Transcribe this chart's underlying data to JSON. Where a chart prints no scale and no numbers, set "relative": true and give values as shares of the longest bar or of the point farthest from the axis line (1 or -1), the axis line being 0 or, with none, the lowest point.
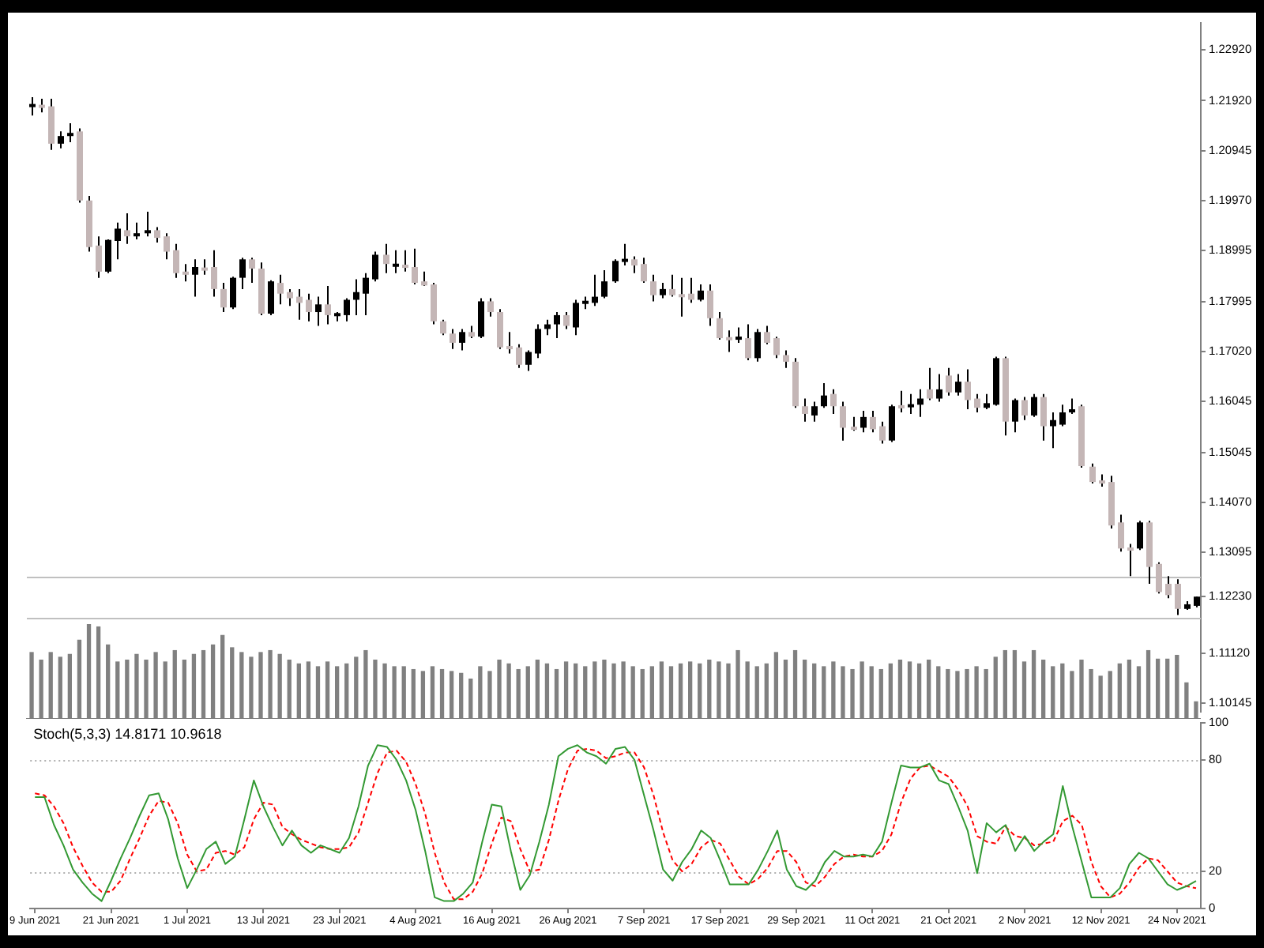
{
  "chart_data": [
    {
      "type": "candlestick",
      "tick_labels": "y",
      "categories": [
        null,
        null,
        null,
        null,
        null,
        null,
        null,
        null,
        null,
        null,
        null,
        null,
        null,
        null,
        null,
        null,
        null,
        null,
        null,
        null,
        null,
        null,
        null,
        null,
        null,
        null,
        null,
        null,
        null,
        null,
        null,
        null,
        null,
        null,
        null,
        null,
        null,
        null,
        null,
        null,
        null,
        null,
        null,
        null,
        null,
        null,
        null,
        null,
        null,
        null,
        null,
        null,
        null,
        null,
        null,
        null,
        null,
        null,
        null,
        null,
        null,
        null,
        null,
        null,
        null,
        null,
        null,
        null,
        null,
        null,
        null,
        null,
        null,
        null,
        null,
        null,
        null,
        null,
        null,
        null,
        null,
        null,
        null,
        null,
        null,
        null,
        null,
        null,
        null,
        null,
        null,
        null,
        null,
        null,
        null,
        null,
        null,
        null,
        null,
        null,
        null,
        null,
        null,
        null,
        null,
        null,
        null,
        null,
        null,
        null,
        null,
        null,
        null,
        null,
        null,
        null,
        null,
        null,
        null,
        null,
        null,
        null,
        null
      ],
      "ohlc": [
        [
          1.2181,
          1.2199,
          1.2163,
          1.2184
        ],
        [
          1.2182,
          1.2196,
          1.2169,
          1.218
        ],
        [
          1.2181,
          1.2196,
          1.2096,
          1.2108
        ],
        [
          1.2108,
          1.2132,
          1.2099,
          1.2123
        ],
        [
          1.2123,
          1.2148,
          1.2111,
          1.2129
        ],
        [
          1.2132,
          1.2138,
          1.1993,
          1.1997
        ],
        [
          1.1997,
          1.2006,
          1.1897,
          1.1906
        ],
        [
          1.1909,
          1.1927,
          1.1846,
          1.1858
        ],
        [
          1.1858,
          1.1921,
          1.1855,
          1.192
        ],
        [
          1.1918,
          1.1954,
          1.1882,
          1.1942
        ],
        [
          1.1939,
          1.1972,
          1.1912,
          1.1927
        ],
        [
          1.1927,
          1.1954,
          1.1921,
          1.1933
        ],
        [
          1.1933,
          1.1975,
          1.1927,
          1.1939
        ],
        [
          1.1939,
          1.1945,
          1.1915,
          1.1924
        ],
        [
          1.1927,
          1.1933,
          1.1882,
          1.1897
        ],
        [
          1.19,
          1.1912,
          1.1846,
          1.1855
        ],
        [
          1.1858,
          1.1873,
          1.1839,
          1.1852
        ],
        [
          1.1852,
          1.1882,
          1.1809,
          1.1867
        ],
        [
          1.1864,
          1.1882,
          1.1852,
          1.1862
        ],
        [
          1.1867,
          1.19,
          1.1809,
          1.1824
        ],
        [
          1.1824,
          1.1836,
          1.1779,
          1.1788
        ],
        [
          1.1788,
          1.1848,
          1.1785,
          1.1846
        ],
        [
          1.1846,
          1.1885,
          1.1824,
          1.1882
        ],
        [
          1.1882,
          1.1885,
          1.1836,
          1.1864
        ],
        [
          1.1864,
          1.1876,
          1.1773,
          1.1776
        ],
        [
          1.1776,
          1.1841,
          1.1773,
          1.1839
        ],
        [
          1.1836,
          1.1852,
          1.1794,
          1.1815
        ],
        [
          1.1818,
          1.1824,
          1.1791,
          1.1806
        ],
        [
          1.1809,
          1.1824,
          1.1764,
          1.1797
        ],
        [
          1.1803,
          1.1815,
          1.1761,
          1.1779
        ],
        [
          1.1779,
          1.1809,
          1.1752,
          1.1794
        ],
        [
          1.1794,
          1.183,
          1.1755,
          1.1773
        ],
        [
          1.1773,
          1.1779,
          1.1761,
          1.1775
        ],
        [
          1.1773,
          1.1806,
          1.1761,
          1.1803
        ],
        [
          1.1803,
          1.1843,
          1.1773,
          1.1818
        ],
        [
          1.1815,
          1.1855,
          1.1773,
          1.1846
        ],
        [
          1.1843,
          1.1897,
          1.1839,
          1.1891
        ],
        [
          1.1891,
          1.1912,
          1.1855,
          1.1873
        ],
        [
          1.187,
          1.19,
          1.1855,
          1.1871
        ],
        [
          1.187,
          1.19,
          1.1858,
          1.1867
        ],
        [
          1.1867,
          1.1903,
          1.1833,
          1.1836
        ],
        [
          1.1839,
          1.1858,
          1.183,
          1.1831
        ],
        [
          1.1833,
          1.1836,
          1.1755,
          1.1761
        ],
        [
          1.1761,
          1.1764,
          1.1734,
          1.1737
        ],
        [
          1.1737,
          1.1746,
          1.1707,
          1.1719
        ],
        [
          1.1719,
          1.1746,
          1.1704,
          1.174
        ],
        [
          1.174,
          1.1752,
          1.1728,
          1.1731
        ],
        [
          1.1731,
          1.1806,
          1.1728,
          1.18
        ],
        [
          1.18,
          1.1806,
          1.177,
          1.1779
        ],
        [
          1.1779,
          1.1785,
          1.1707,
          1.171
        ],
        [
          1.171,
          1.174,
          1.1698,
          1.1709
        ],
        [
          1.171,
          1.1716,
          1.167,
          1.1676
        ],
        [
          1.1676,
          1.1704,
          1.1664,
          1.1701
        ],
        [
          1.1698,
          1.1755,
          1.1689,
          1.1746
        ],
        [
          1.1746,
          1.1764,
          1.1734,
          1.1755
        ],
        [
          1.1755,
          1.1779,
          1.1728,
          1.1773
        ],
        [
          1.1773,
          1.1779,
          1.1746,
          1.1752
        ],
        [
          1.1749,
          1.1803,
          1.1734,
          1.1797
        ],
        [
          1.1797,
          1.1809,
          1.1785,
          1.1799
        ],
        [
          1.1797,
          1.1852,
          1.1791,
          1.1809
        ],
        [
          1.1809,
          1.1861,
          1.1806,
          1.1839
        ],
        [
          1.1839,
          1.1882,
          1.1836,
          1.1879
        ],
        [
          1.1879,
          1.1912,
          1.187,
          1.1881
        ],
        [
          1.1882,
          1.1888,
          1.1855,
          1.187
        ],
        [
          1.1873,
          1.1885,
          1.1836,
          1.1839
        ],
        [
          1.1839,
          1.1852,
          1.18,
          1.1812
        ],
        [
          1.1812,
          1.1836,
          1.1806,
          1.1824
        ],
        [
          1.1824,
          1.1852,
          1.1809,
          1.1812
        ],
        [
          1.1812,
          1.1846,
          1.177,
          1.181
        ],
        [
          1.1815,
          1.1846,
          1.1797,
          1.1803
        ],
        [
          1.1803,
          1.1833,
          1.18,
          1.1821
        ],
        [
          1.1821,
          1.1833,
          1.1752,
          1.1767
        ],
        [
          1.1767,
          1.1779,
          1.1725,
          1.1728
        ],
        [
          1.1728,
          1.1743,
          1.1701,
          1.1726
        ],
        [
          1.1727,
          1.1749,
          1.1719,
          1.1729
        ],
        [
          1.1728,
          1.1755,
          1.1685,
          1.1689
        ],
        [
          1.1689,
          1.1746,
          1.1682,
          1.174
        ],
        [
          1.174,
          1.1752,
          1.1716,
          1.1719
        ],
        [
          1.1728,
          1.1731,
          1.1689,
          1.1695
        ],
        [
          1.1695,
          1.1704,
          1.167,
          1.1682
        ],
        [
          1.1682,
          1.1689,
          1.1592,
          1.1595
        ],
        [
          1.1595,
          1.161,
          1.1565,
          1.158
        ],
        [
          1.1577,
          1.1604,
          1.1565,
          1.1595
        ],
        [
          1.1595,
          1.164,
          1.1592,
          1.1616
        ],
        [
          1.1619,
          1.1628,
          1.158,
          1.1595
        ],
        [
          1.1595,
          1.1604,
          1.1528,
          1.1553
        ],
        [
          1.1553,
          1.1574,
          1.1547,
          1.1551
        ],
        [
          1.1553,
          1.1586,
          1.1544,
          1.1574
        ],
        [
          1.1574,
          1.1586,
          1.1544,
          1.155
        ],
        [
          1.1556,
          1.1565,
          1.1522,
          1.1528
        ],
        [
          1.1528,
          1.1598,
          1.1525,
          1.1595
        ],
        [
          1.1595,
          1.1625,
          1.1583,
          1.1593
        ],
        [
          1.1595,
          1.1619,
          1.158,
          1.1597
        ],
        [
          1.1598,
          1.1628,
          1.1574,
          1.161
        ],
        [
          1.1628,
          1.167,
          1.1607,
          1.161
        ],
        [
          1.161,
          1.1658,
          1.1604,
          1.1628
        ],
        [
          1.1655,
          1.167,
          1.1616,
          1.1622
        ],
        [
          1.1622,
          1.1658,
          1.1616,
          1.1643
        ],
        [
          1.1643,
          1.1667,
          1.1589,
          1.1607
        ],
        [
          1.161,
          1.1619,
          1.1583,
          1.1592
        ],
        [
          1.1592,
          1.1619,
          1.1589,
          1.1601
        ],
        [
          1.1598,
          1.1692,
          1.1596,
          1.1689
        ],
        [
          1.1689,
          1.1692,
          1.1538,
          1.1565
        ],
        [
          1.1565,
          1.161,
          1.1544,
          1.1607
        ],
        [
          1.1607,
          1.1613,
          1.1568,
          1.1577
        ],
        [
          1.1577,
          1.1619,
          1.1574,
          1.1613
        ],
        [
          1.1613,
          1.1619,
          1.1528,
          1.1556
        ],
        [
          1.1556,
          1.1583,
          1.1513,
          1.1568
        ],
        [
          1.1559,
          1.1598,
          1.1556,
          1.1583
        ],
        [
          1.1583,
          1.161,
          1.158,
          1.1589
        ],
        [
          1.1595,
          1.1598,
          1.1475,
          1.1478
        ],
        [
          1.1477,
          1.1483,
          1.1444,
          1.1447
        ],
        [
          1.145,
          1.1462,
          1.1438,
          1.1444
        ],
        [
          1.1447,
          1.1459,
          1.1356,
          1.1362
        ],
        [
          1.1368,
          1.1383,
          1.1311,
          1.1317
        ],
        [
          1.1317,
          1.1326,
          1.1263,
          1.1315
        ],
        [
          1.1317,
          1.1371,
          1.1314,
          1.1368
        ],
        [
          1.1368,
          1.1371,
          1.1248,
          1.1281
        ],
        [
          1.1287,
          1.129,
          1.1229,
          1.1232
        ],
        [
          1.1248,
          1.1263,
          1.122,
          1.1226
        ],
        [
          1.1248,
          1.1257,
          1.1187,
          1.1199
        ],
        [
          1.1199,
          1.1214,
          1.1197,
          1.1208
        ],
        [
          1.1205,
          1.1223,
          1.1202,
          1.1223
        ]
      ],
      "ylim": [
        1.0998,
        1.2344
      ],
      "yticks": [
        {
          "value": 1.2292,
          "label": "1.22920"
        },
        {
          "value": 1.2192,
          "label": "1.21920"
        },
        {
          "value": 1.20945,
          "label": "1.20945"
        },
        {
          "value": 1.1997,
          "label": "1.19970"
        },
        {
          "value": 1.18995,
          "label": "1.18995"
        },
        {
          "value": 1.17995,
          "label": "1.17995"
        },
        {
          "value": 1.1702,
          "label": "1.17020"
        },
        {
          "value": 1.16045,
          "label": "1.16045"
        },
        {
          "value": 1.15045,
          "label": "1.15045"
        },
        {
          "value": 1.1407,
          "label": "1.14070"
        },
        {
          "value": 1.13095,
          "label": "1.13095"
        },
        {
          "value": 1.1223,
          "label": "1.12230"
        },
        {
          "value": 1.1112,
          "label": "1.11120"
        },
        {
          "value": 1.10145,
          "label": "1.10145"
        }
      ],
      "ref_lines": [
        {
          "axis": "y",
          "value": 1.1263,
          "color": "#c0c0c0"
        },
        {
          "axis": "y",
          "value": 1.1181,
          "color": "#c0c0c0"
        }
      ]
    },
    {
      "type": "bar",
      "relative": true,
      "color": "#808080",
      "tick_labels": false,
      "categories": [
        null,
        null,
        null,
        null,
        null,
        null,
        null,
        null,
        null,
        null,
        null,
        null,
        null,
        null,
        null,
        null,
        null,
        null,
        null,
        null,
        null,
        null,
        null,
        null,
        null,
        null,
        null,
        null,
        null,
        null,
        null,
        null,
        null,
        null,
        null,
        null,
        null,
        null,
        null,
        null,
        null,
        null,
        null,
        null,
        null,
        null,
        null,
        null,
        null,
        null,
        null,
        null,
        null,
        null,
        null,
        null,
        null,
        null,
        null,
        null,
        null,
        null,
        null,
        null,
        null,
        null,
        null,
        null,
        null,
        null,
        null,
        null,
        null,
        null,
        null,
        null,
        null,
        null,
        null,
        null,
        null,
        null,
        null,
        null,
        null,
        null,
        null,
        null,
        null,
        null,
        null,
        null,
        null,
        null,
        null,
        null,
        null,
        null,
        null,
        null,
        null,
        null,
        null,
        null,
        null,
        null,
        null,
        null,
        null,
        null,
        null,
        null,
        null,
        null,
        null,
        null,
        null,
        null,
        null,
        null,
        null,
        null,
        null
      ],
      "values": [
        0.7,
        0.62,
        0.7,
        0.65,
        0.68,
        0.83,
        1,
        0.97,
        0.78,
        0.6,
        0.62,
        0.68,
        0.62,
        0.7,
        0.6,
        0.72,
        0.62,
        0.68,
        0.72,
        0.78,
        0.88,
        0.75,
        0.7,
        0.65,
        0.7,
        0.72,
        0.68,
        0.62,
        0.58,
        0.6,
        0.55,
        0.6,
        0.55,
        0.58,
        0.65,
        0.72,
        0.62,
        0.58,
        0.55,
        0.55,
        0.52,
        0.5,
        0.55,
        0.52,
        0.5,
        0.48,
        0.42,
        0.55,
        0.5,
        0.62,
        0.58,
        0.52,
        0.55,
        0.62,
        0.58,
        0.52,
        0.6,
        0.58,
        0.55,
        0.6,
        0.62,
        0.58,
        0.6,
        0.55,
        0.52,
        0.55,
        0.6,
        0.55,
        0.58,
        0.6,
        0.58,
        0.62,
        0.6,
        0.58,
        0.72,
        0.6,
        0.55,
        0.58,
        0.7,
        0.62,
        0.72,
        0.62,
        0.58,
        0.55,
        0.6,
        0.55,
        0.52,
        0.6,
        0.55,
        0.52,
        0.58,
        0.62,
        0.6,
        0.58,
        0.62,
        0.55,
        0.52,
        0.5,
        0.52,
        0.55,
        0.52,
        0.65,
        0.72,
        0.72,
        0.6,
        0.72,
        0.62,
        0.55,
        0.58,
        0.5,
        0.62,
        0.52,
        0.45,
        0.5,
        0.58,
        0.62,
        0.55,
        0.72,
        0.63,
        0.63,
        0.67,
        0.38,
        0.18
      ]
    },
    {
      "type": "line",
      "title": "Stoch(5,3,3) 14.8171 10.9618",
      "marker": "none",
      "categories": [
        "9 Jun 2021",
        null,
        null,
        null,
        null,
        null,
        null,
        null,
        "21 Jun 2021",
        null,
        null,
        null,
        null,
        null,
        null,
        null,
        "1 Jul 2021",
        null,
        null,
        null,
        null,
        null,
        null,
        null,
        "13 Jul 2021",
        null,
        null,
        null,
        null,
        null,
        null,
        null,
        "23 Jul 2021",
        null,
        null,
        null,
        null,
        null,
        null,
        null,
        "4 Aug 2021",
        null,
        null,
        null,
        null,
        null,
        null,
        null,
        "16 Aug 2021",
        null,
        null,
        null,
        null,
        null,
        null,
        null,
        "26 Aug 2021",
        null,
        null,
        null,
        null,
        null,
        null,
        null,
        "7 Sep 2021",
        null,
        null,
        null,
        null,
        null,
        null,
        null,
        "17 Sep 2021",
        null,
        null,
        null,
        null,
        null,
        null,
        null,
        "29 Sep 2021",
        null,
        null,
        null,
        null,
        null,
        null,
        null,
        "11 Oct 2021",
        null,
        null,
        null,
        null,
        null,
        null,
        null,
        "21 Oct 2021",
        null,
        null,
        null,
        null,
        null,
        null,
        null,
        "2 Nov 2021",
        null,
        null,
        null,
        null,
        null,
        null,
        null,
        "12 Nov 2021",
        null,
        null,
        null,
        null,
        null,
        null,
        null,
        "24 Nov 2021",
        null,
        null
      ],
      "series": [
        {
          "color": "#339933",
          "line_style": "solid",
          "values": [
            60,
            60,
            45,
            34,
            21,
            14,
            8,
            4,
            15,
            27,
            38,
            50,
            61,
            62,
            48,
            27,
            11,
            21,
            32,
            36,
            24,
            28,
            48,
            69,
            55,
            44,
            34,
            42,
            34,
            30,
            34,
            32,
            30,
            38,
            55,
            77,
            88,
            87,
            80,
            69,
            53,
            31,
            6,
            4,
            4,
            8,
            14,
            36,
            56,
            55,
            31,
            10,
            18,
            36,
            56,
            82,
            86,
            88,
            84,
            82,
            78,
            86,
            87,
            80,
            61,
            42,
            21,
            15,
            25,
            32,
            42,
            38,
            26,
            13,
            13,
            13,
            21,
            31,
            42,
            21,
            12,
            10,
            15,
            25,
            31,
            28,
            28,
            29,
            28,
            36,
            57,
            77,
            76,
            76,
            78,
            69,
            67,
            55,
            42,
            19,
            46,
            41,
            45,
            31,
            39,
            31,
            36,
            40,
            66,
            44,
            25,
            6,
            6,
            6,
            11,
            24,
            30,
            27,
            20,
            13,
            10,
            12,
            14.8171
          ]
        },
        {
          "color": "#ff0000",
          "line_style": "dashed",
          "values": [
            62,
            61,
            55,
            46,
            33,
            23,
            14,
            9,
            9,
            15,
            27,
            38,
            50,
            58,
            57,
            46,
            29,
            20,
            21,
            30,
            31,
            29,
            33,
            48,
            57,
            56,
            44,
            40,
            37,
            35,
            33,
            32,
            32,
            33,
            41,
            57,
            73,
            84,
            85,
            79,
            67,
            51,
            30,
            14,
            5,
            5,
            9,
            19,
            35,
            49,
            47,
            32,
            20,
            21,
            37,
            58,
            75,
            85,
            86,
            85,
            81,
            82,
            84,
            84,
            76,
            61,
            41,
            26,
            20,
            24,
            33,
            37,
            35,
            26,
            17,
            13,
            16,
            22,
            31,
            31,
            25,
            14,
            12,
            17,
            24,
            28,
            29,
            28,
            28,
            31,
            40,
            57,
            70,
            76,
            77,
            74,
            71,
            64,
            55,
            39,
            36,
            35,
            44,
            39,
            38,
            34,
            35,
            36,
            47,
            50,
            45,
            25,
            12,
            6,
            8,
            14,
            22,
            27,
            26,
            20,
            14,
            12,
            10.9618
          ]
        }
      ],
      "ylim": [
        0,
        100
      ],
      "yticks": [
        0,
        20,
        80,
        100
      ],
      "ref_lines": [
        {
          "axis": "y",
          "value": 80,
          "color": "#b0b0b0",
          "line_style": "dotted"
        },
        {
          "axis": "y",
          "value": 20,
          "color": "#b0b0b0",
          "line_style": "dotted"
        }
      ]
    }
  ]
}
